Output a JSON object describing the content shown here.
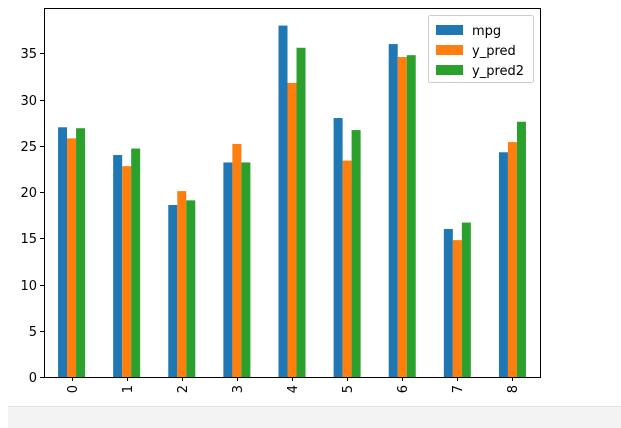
{
  "chart_data": {
    "type": "bar",
    "title": "",
    "xlabel": "",
    "ylabel": "",
    "categories": [
      "0",
      "1",
      "2",
      "3",
      "4",
      "5",
      "6",
      "7",
      "8"
    ],
    "series": [
      {
        "name": "mpg",
        "color": "#1f77b4",
        "values": [
          27.0,
          24.0,
          18.6,
          23.2,
          38.0,
          28.0,
          36.0,
          16.0,
          24.3
        ]
      },
      {
        "name": "y_pred",
        "color": "#ff7f0e",
        "values": [
          25.8,
          22.8,
          20.1,
          25.2,
          31.8,
          23.4,
          34.6,
          14.8,
          25.4
        ]
      },
      {
        "name": "y_pred2",
        "color": "#2ca02c",
        "values": [
          26.9,
          24.7,
          19.1,
          23.2,
          35.6,
          26.7,
          34.8,
          16.7,
          27.6
        ]
      }
    ],
    "ylim": [
      0,
      39.9
    ],
    "yticks": [
      "0",
      "5",
      "10",
      "15",
      "20",
      "25",
      "30",
      "35"
    ],
    "legend": "top-right",
    "grid": false
  }
}
